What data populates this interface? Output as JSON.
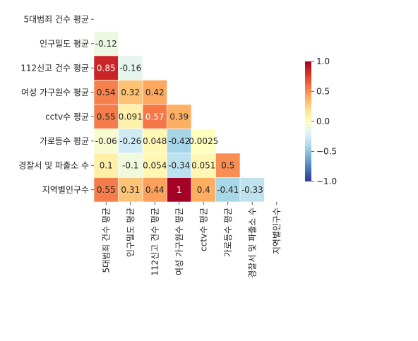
{
  "chart_data": {
    "type": "heatmap",
    "title": "",
    "variables": [
      "5대범죄 건수 평균",
      "인구밀도 평균",
      "112신고 건수 평균",
      "여성 가구원수 평균",
      "cctv수 평균",
      "가로등수 평균",
      "경찰서 및 파출소 수",
      "지역별인구수"
    ],
    "lower_triangle_values": [
      [],
      [
        -0.12
      ],
      [
        0.85,
        -0.16
      ],
      [
        0.54,
        0.32,
        0.42
      ],
      [
        0.55,
        0.091,
        0.57,
        0.39
      ],
      [
        -0.06,
        -0.26,
        0.048,
        -0.42,
        0.0025
      ],
      [
        0.1,
        -0.1,
        0.054,
        -0.34,
        0.051,
        0.5
      ],
      [
        0.55,
        0.31,
        0.44,
        1,
        0.4,
        -0.41,
        -0.33
      ]
    ],
    "annotations": [
      [],
      [
        "-0.12"
      ],
      [
        "0.85",
        "-0.16"
      ],
      [
        "0.54",
        "0.32",
        "0.42"
      ],
      [
        "0.55",
        "0.091",
        "0.57",
        "0.39"
      ],
      [
        "-0.06",
        "-0.26",
        "0.048",
        "-0.42",
        "0.0025"
      ],
      [
        "0.1",
        "-0.1",
        "0.054",
        "-0.34",
        "0.051",
        "0.5"
      ],
      [
        "0.55",
        "0.31",
        "0.44",
        "1",
        "0.4",
        "-0.41",
        "-0.33"
      ]
    ],
    "colormap": "RdYlBu_r",
    "vmin": -1.0,
    "vmax": 1.0,
    "colorbar_ticks": [
      1.0,
      0.5,
      0.0,
      -0.5,
      -1.0
    ],
    "colorbar_tick_labels": [
      "1.0",
      "0.5",
      "0.0",
      "−0.5",
      "−1.0"
    ],
    "mask": "upper-triangle"
  }
}
